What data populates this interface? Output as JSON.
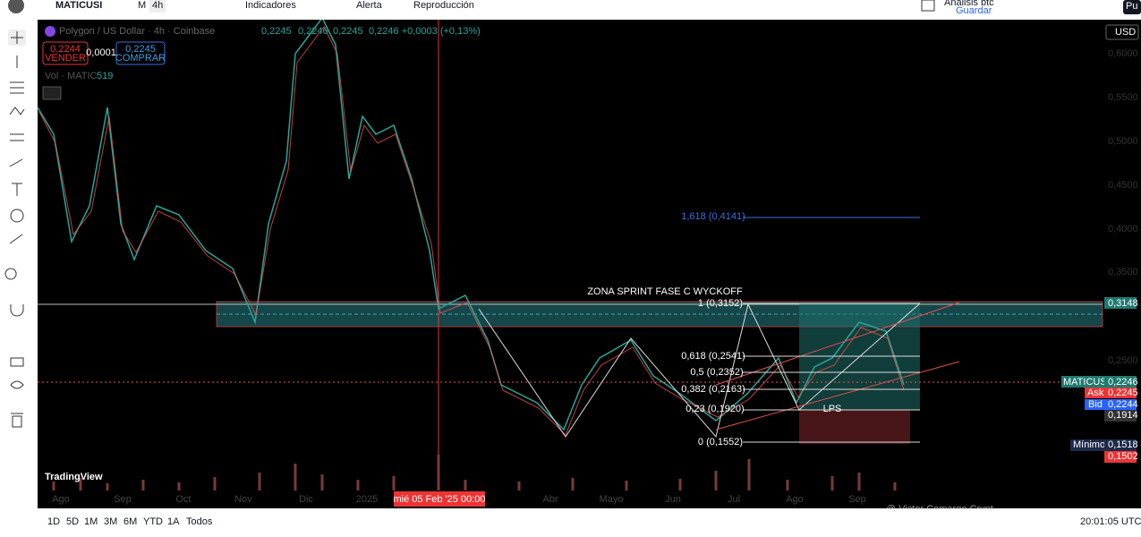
{
  "toolbar": {
    "symbol": "MATICUSI",
    "interval_m": "M",
    "interval": "4h",
    "indicators": "Indicadores",
    "alert": "Alerta",
    "replay": "Reproducción",
    "layout_name": "Análisis btc",
    "save": "Guardar",
    "publish": "Pu"
  },
  "legend": {
    "title": "Polygon / US Dollar · 4h · Coinbase",
    "open": "0,2245",
    "high": "0,2246",
    "low": "0,2245",
    "close": "0,2246 +0,0003 (+0,13%)",
    "sell_price": "0,2244",
    "sell": "VENDER",
    "spread": "0,0001",
    "buy_price": "0,2245",
    "buy": "COMPRAR",
    "volume": "Vol · MATIC",
    "volume_value": "519"
  },
  "price_axis": {
    "currency": "USD",
    "ticks": [
      "0,6000",
      "0,5500",
      "0,5000",
      "0,4500",
      "0,4000",
      "0,3500",
      "0,2500"
    ],
    "badges": {
      "zone": "0,3148",
      "symbol": "MATICUSD",
      "last": "0,2246",
      "ask_label": "Ask",
      "ask": "0,2245",
      "bid_label": "Bid",
      "bid": "0,2244",
      "level": "0,1914",
      "min_label": "Mínimo",
      "min": "0,1518",
      "low": "0,1502"
    }
  },
  "annotations": {
    "zone": "ZONA SPRINT FASE C WYCKOFF",
    "fib": [
      "1,618 (0,4141)",
      "1 (0,3152)",
      "0,618 (0,2541)",
      "0,5 (0,2352)",
      "0,382 (0,2163)",
      "0,23 (0,1920)",
      "0 (0,1552)"
    ],
    "lps": "LPS",
    "logo": "TradingView",
    "watermark": "@ Victor Camargo Crypt"
  },
  "time_axis": {
    "labels": [
      "Ago",
      "Sep",
      "Oct",
      "Nov",
      "Dic",
      "2025",
      "Abr",
      "Mayo",
      "Jun",
      "Jul",
      "Ago",
      "Sep"
    ],
    "cursor": "mié 05 Feb '25   00:00"
  },
  "bottom_bar": {
    "ranges": [
      "1D",
      "5D",
      "1M",
      "3M",
      "6M",
      "YTD",
      "1A",
      "Todos"
    ],
    "clock": "20:01:05 UTC"
  }
}
